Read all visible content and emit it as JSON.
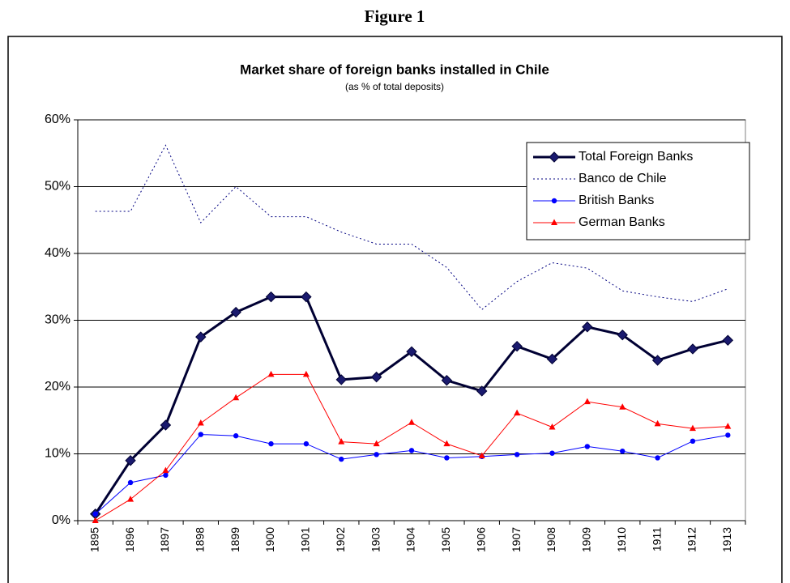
{
  "figure_label": "Figure 1",
  "chart_data": {
    "type": "line",
    "title": "Market share of foreign banks installed in Chile",
    "subtitle": "(as % of total deposits)",
    "categories": [
      "1895",
      "1896",
      "1897",
      "1898",
      "1899",
      "1900",
      "1901",
      "1902",
      "1903",
      "1904",
      "1905",
      "1906",
      "1907",
      "1908",
      "1909",
      "1910",
      "1911",
      "1912",
      "1913"
    ],
    "series": [
      {
        "name": "Total Foreign Banks",
        "color": "#000033",
        "marker": "diamond",
        "dash": "solid",
        "width": 3,
        "values": [
          1,
          9,
          14.3,
          27.5,
          31.2,
          33.5,
          33.5,
          21.1,
          21.5,
          25.3,
          21,
          19.4,
          26.1,
          24.2,
          29,
          27.8,
          24,
          25.7,
          27
        ]
      },
      {
        "name": "Banco de Chile",
        "color": "#000080",
        "marker": "none",
        "dash": "dotted",
        "width": 1,
        "values": [
          46.3,
          46.3,
          56.2,
          44.6,
          50,
          45.5,
          45.5,
          43.2,
          41.4,
          41.4,
          37.9,
          31.6,
          35.8,
          38.6,
          37.8,
          34.4,
          33.5,
          32.8,
          34.7
        ]
      },
      {
        "name": "British Banks",
        "color": "#0000ff",
        "marker": "circle",
        "dash": "solid",
        "width": 1,
        "values": [
          1,
          5.7,
          6.8,
          12.9,
          12.7,
          11.5,
          11.5,
          9.2,
          9.9,
          10.5,
          9.4,
          9.6,
          9.9,
          10.1,
          11.1,
          10.4,
          9.4,
          11.9,
          12.8
        ]
      },
      {
        "name": "German Banks",
        "color": "#ff0000",
        "marker": "triangle",
        "dash": "solid",
        "width": 1,
        "values": [
          0,
          3.2,
          7.5,
          14.6,
          18.4,
          21.9,
          21.9,
          11.8,
          11.5,
          14.7,
          11.5,
          9.7,
          16.1,
          14,
          17.8,
          17,
          14.5,
          13.8,
          14.1
        ]
      }
    ],
    "ylim": [
      0,
      60
    ],
    "yticks": [
      {
        "value": 0,
        "label": "0%"
      },
      {
        "value": 10,
        "label": "10%"
      },
      {
        "value": 20,
        "label": "20%"
      },
      {
        "value": 30,
        "label": "30%"
      },
      {
        "value": 40,
        "label": "40%"
      },
      {
        "value": 50,
        "label": "50%"
      },
      {
        "value": 60,
        "label": "60%"
      }
    ],
    "grid": true,
    "legend": "upper right"
  }
}
